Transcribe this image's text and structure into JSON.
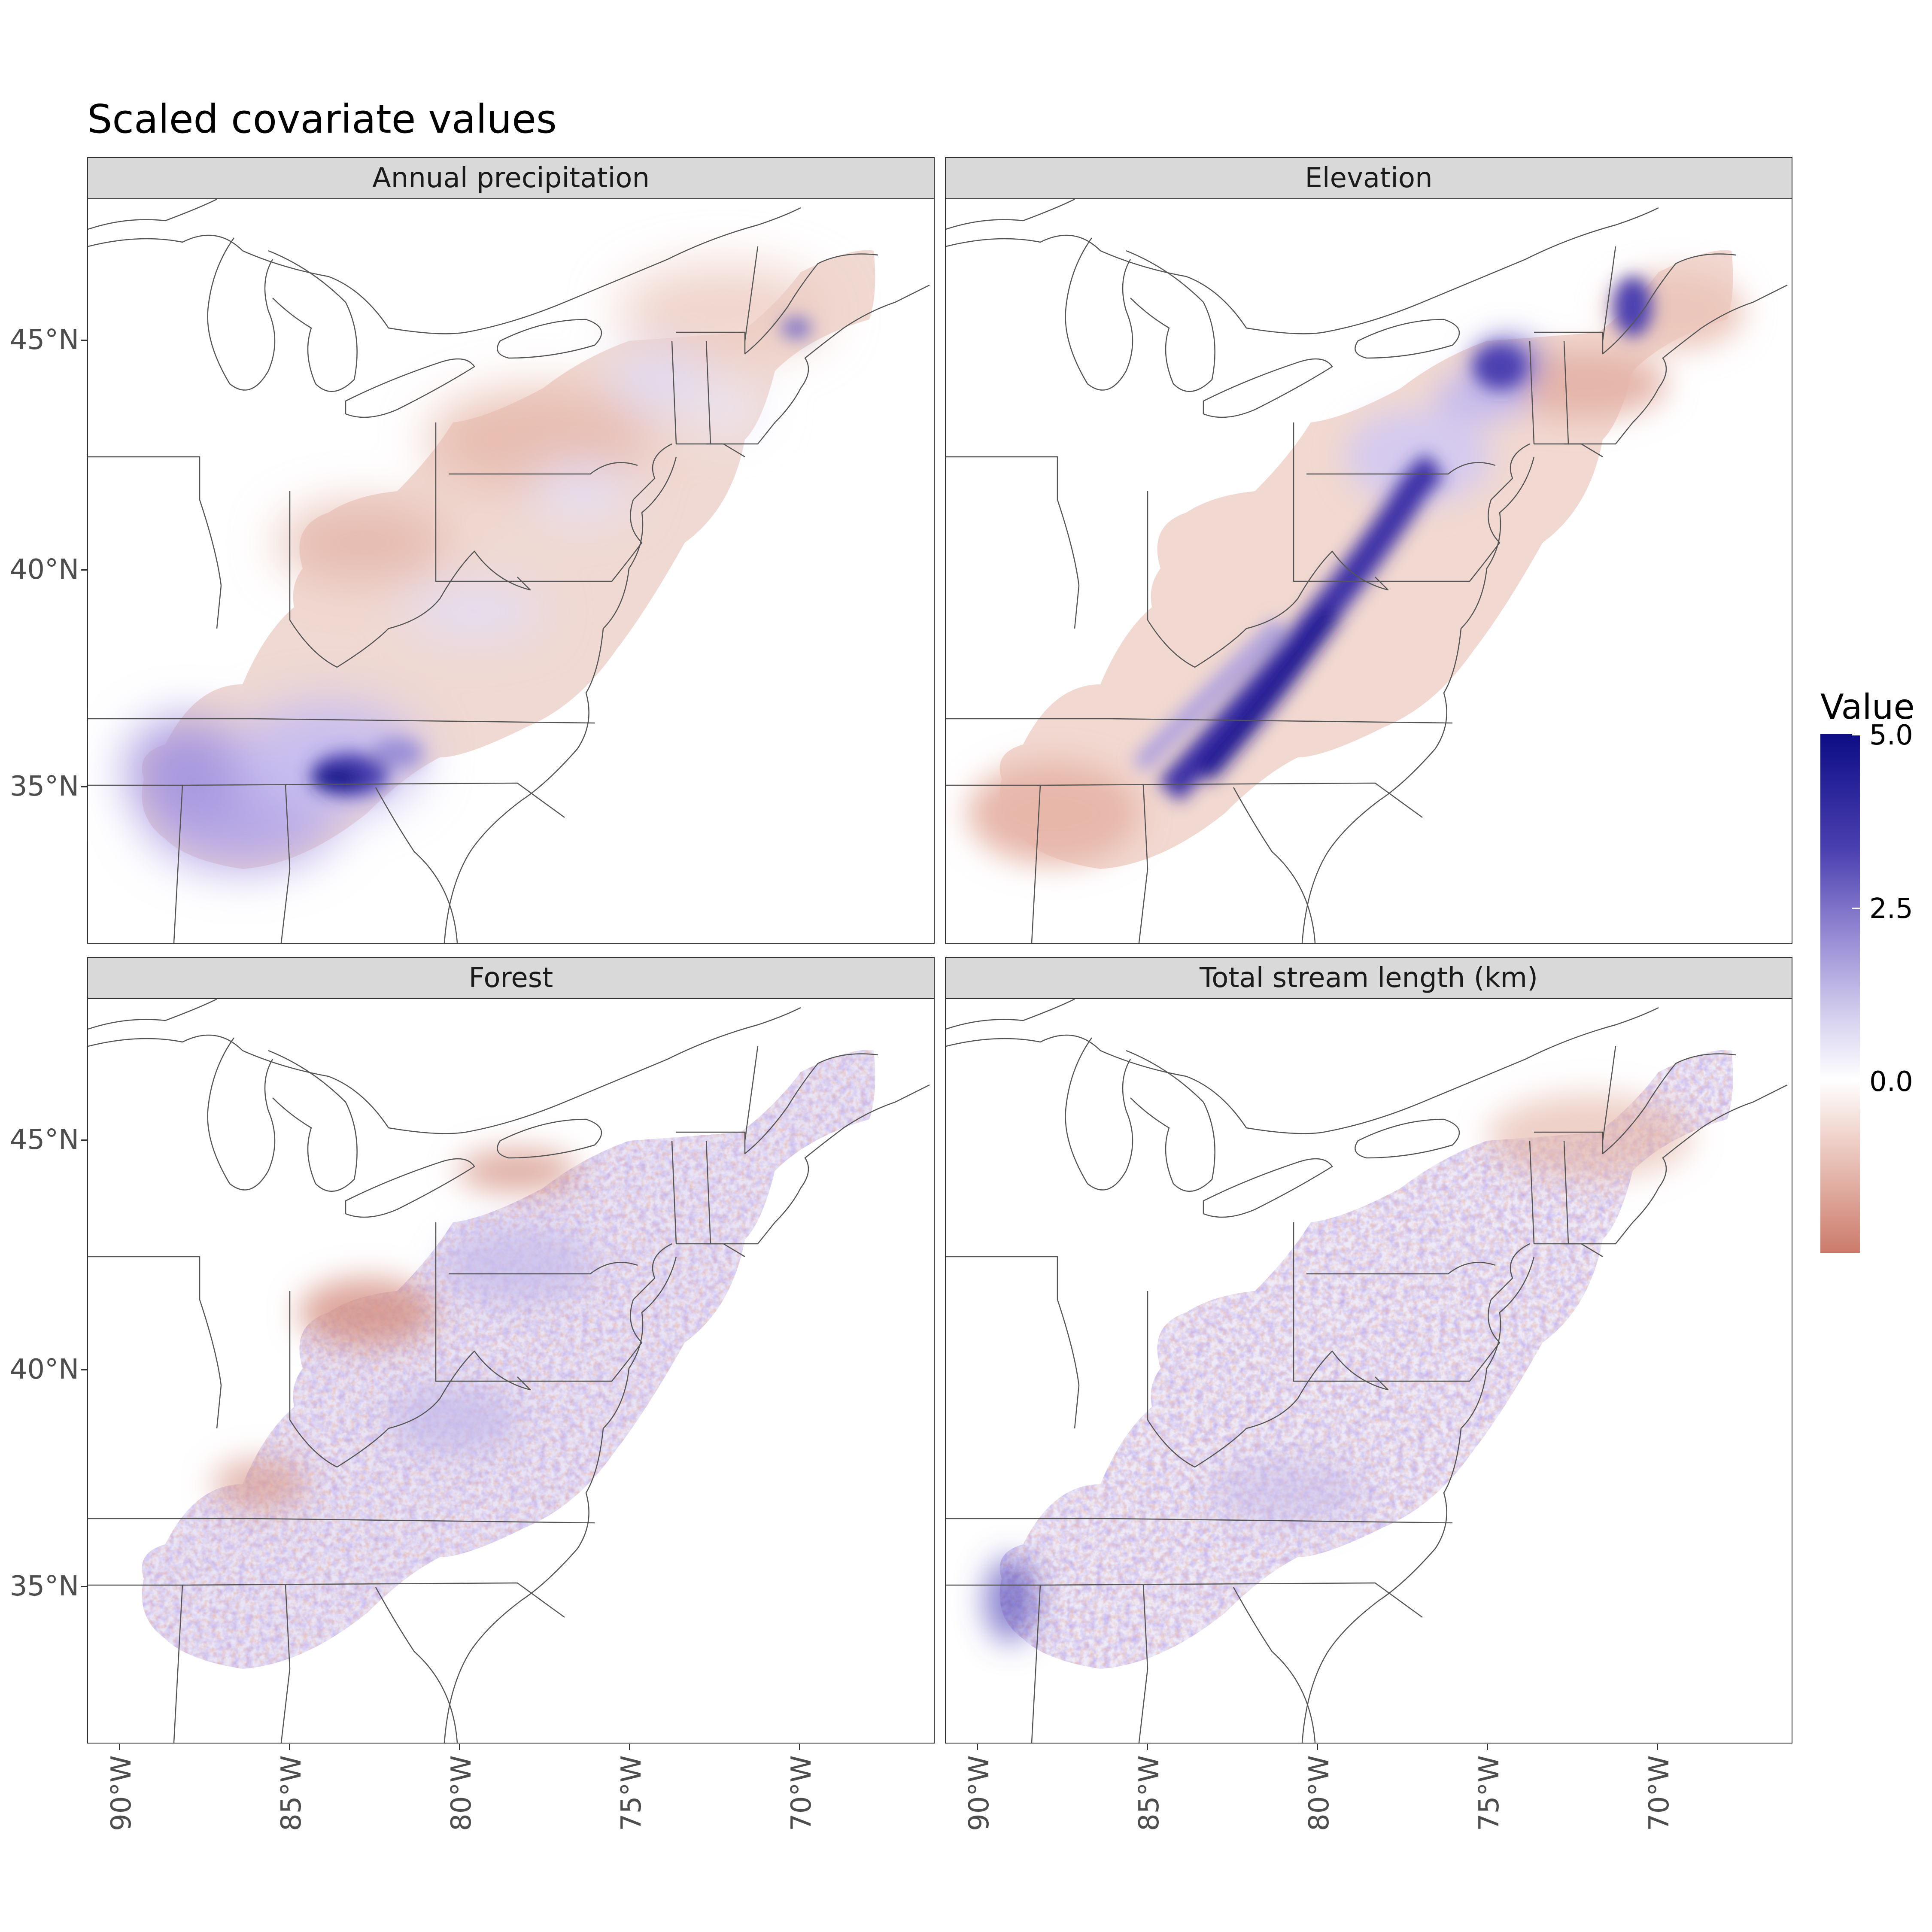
{
  "title": "Scaled covariate values",
  "panels": [
    {
      "id": "annual-precipitation",
      "strip": "Annual precipitation"
    },
    {
      "id": "elevation",
      "strip": "Elevation"
    },
    {
      "id": "forest",
      "strip": "Forest"
    },
    {
      "id": "total-stream-length",
      "strip": "Total stream length (km)"
    }
  ],
  "axes": {
    "y_labels": [
      "45°N",
      "40°N",
      "35°N"
    ],
    "x_labels": [
      "90°W",
      "85°W",
      "80°W",
      "75°W",
      "70°W"
    ],
    "lat_range": [
      31.5,
      48.0
    ],
    "lon_range": [
      91.0,
      66.0
    ]
  },
  "legend": {
    "title": "Value",
    "ticks": [
      "5.0",
      "2.5",
      "0.0"
    ],
    "range": [
      -2.5,
      5.0
    ],
    "colors": {
      "high": "#0d0d85",
      "mid_high": "#9b8fd6",
      "zero": "#ffffff",
      "low": "#cc7b6b"
    }
  },
  "colors": {
    "strip_bg": "#d9d9d9",
    "border": "#333333",
    "state_lines": "#555555"
  }
}
